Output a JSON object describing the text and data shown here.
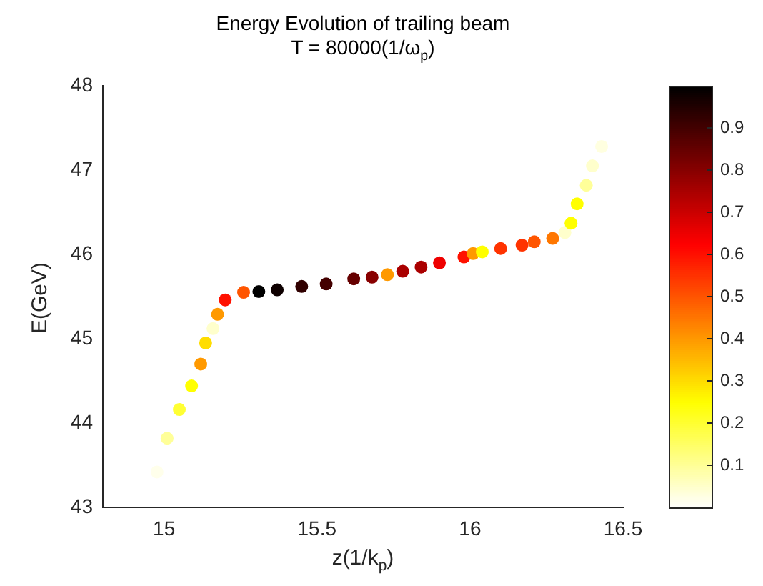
{
  "chart_data": {
    "type": "scatter",
    "title": "Energy Evolution of trailing beam",
    "subtitle": "T = 80000(1/ω$_{p}$)",
    "xlabel": "z(1/k$_{p}$)",
    "ylabel": "E(GeV)",
    "x": [
      14.977,
      15.01,
      15.05,
      15.09,
      15.12,
      15.136,
      15.16,
      15.175,
      15.2,
      15.26,
      15.31,
      15.37,
      15.45,
      15.53,
      15.62,
      15.68,
      15.73,
      15.78,
      15.84,
      15.9,
      15.98,
      16.01,
      16.04,
      16.1,
      16.17,
      16.21,
      16.27,
      16.31,
      16.33,
      16.35,
      16.38,
      16.4,
      16.43
    ],
    "values": [
      43.42,
      43.82,
      44.16,
      44.44,
      44.7,
      44.95,
      45.12,
      45.29,
      45.46,
      45.55,
      45.56,
      45.58,
      45.62,
      45.65,
      45.71,
      45.73,
      45.76,
      45.8,
      45.85,
      45.9,
      45.97,
      46.01,
      46.03,
      46.07,
      46.11,
      46.15,
      46.19,
      46.26,
      46.37,
      46.6,
      46.82,
      47.05,
      47.28
    ],
    "cvalues": [
      0.02,
      0.1,
      0.2,
      0.25,
      0.4,
      0.3,
      0.05,
      0.4,
      0.6,
      0.5,
      1.0,
      0.98,
      0.93,
      0.9,
      0.85,
      0.8,
      0.4,
      0.75,
      0.75,
      0.65,
      0.6,
      0.4,
      0.25,
      0.55,
      0.55,
      0.5,
      0.45,
      0.05,
      0.25,
      0.25,
      0.1,
      0.05,
      0.03
    ],
    "xlim": [
      14.8,
      16.5
    ],
    "xticks": [
      15,
      15.5,
      16,
      16.5
    ],
    "ylim": [
      43,
      48
    ],
    "yticks": [
      43,
      44,
      45,
      46,
      47,
      48
    ],
    "clim": [
      0,
      1
    ],
    "cticks": [
      0.1,
      0.2,
      0.3,
      0.4,
      0.5,
      0.6,
      0.7,
      0.8,
      0.9
    ],
    "marker": "circle",
    "grid": false,
    "legend": false
  }
}
